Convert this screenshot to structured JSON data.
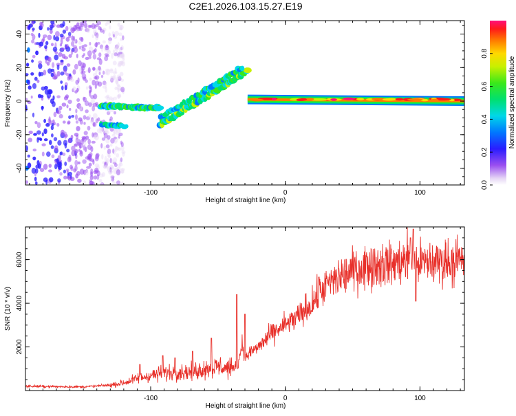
{
  "figure_title": "C2E1.2026.103.15.27.E19",
  "chart_data": [
    {
      "type": "heatmap",
      "title": "",
      "xlabel": "Height of straight line (km)",
      "ylabel": "Frequency (Hz)",
      "xlim": [
        -193,
        133
      ],
      "ylim": [
        -50,
        48
      ],
      "xticks": [
        -100,
        0,
        100
      ],
      "xtick_labels": [
        "-100",
        "0",
        "100"
      ],
      "yticks": [
        -40,
        -20,
        0,
        20,
        40
      ],
      "ytick_labels": [
        "-40",
        "-20",
        "0",
        "20",
        "40"
      ],
      "colorbar": {
        "label": "Normalized spectral amplitude",
        "range": [
          0,
          1
        ],
        "ticks": [
          0.0,
          0.2,
          0.4,
          0.6,
          0.8
        ],
        "tick_labels": [
          "0.0",
          "0.2",
          "0.4",
          "0.6",
          "0.8"
        ]
      },
      "features": [
        {
          "name": "noise-region",
          "x_range": [
            -193,
            -130
          ],
          "freq_range": [
            -50,
            48
          ],
          "amplitude": 0.15
        },
        {
          "name": "lower-branch",
          "x_start": -137,
          "x_end": -93,
          "freq_start": -3,
          "freq_end": -4,
          "amplitude": 0.45
        },
        {
          "name": "rising-trace",
          "x_start": -93,
          "x_end": -28,
          "freq_start": -14,
          "freq_end": 18,
          "amplitude": 0.5
        },
        {
          "name": "carrier-line",
          "x_start": -28,
          "x_end": 133,
          "freq_start": 1,
          "freq_end": 0,
          "amplitude": 0.95
        }
      ]
    },
    {
      "type": "line",
      "title": "",
      "xlabel": "Height of straight line (km)",
      "ylabel": "SNR (10 * v/v)",
      "xlim": [
        -193,
        133
      ],
      "ylim": [
        0,
        7500
      ],
      "xticks": [
        -100,
        0,
        100
      ],
      "xtick_labels": [
        "-100",
        "0",
        "100"
      ],
      "yticks": [
        2000,
        4000,
        6000
      ],
      "ytick_labels": [
        "2000",
        "4000",
        "6000"
      ],
      "series": [
        {
          "name": "SNR",
          "color": "#e8302a",
          "x": [
            -193,
            -170,
            -150,
            -130,
            -120,
            -110,
            -100,
            -90,
            -80,
            -70,
            -60,
            -50,
            -40,
            -35,
            -32,
            -30,
            -25,
            -20,
            -10,
            0,
            10,
            20,
            30,
            40,
            50,
            60,
            70,
            80,
            90,
            95,
            100,
            110,
            120,
            133
          ],
          "values": [
            200,
            180,
            170,
            250,
            350,
            550,
            700,
            800,
            850,
            850,
            1000,
            1100,
            1000,
            1200,
            2200,
            1500,
            1800,
            2000,
            2600,
            3000,
            3400,
            4000,
            4800,
            5200,
            5500,
            5700,
            5800,
            5800,
            6000,
            6200,
            5800,
            5900,
            5950,
            5950
          ],
          "spikes": [
            [
              -108,
              1200
            ],
            [
              -91,
              1600
            ],
            [
              -82,
              1500
            ],
            [
              -69,
              1800
            ],
            [
              -55,
              2400
            ],
            [
              -36,
              4400
            ],
            [
              -30,
              3500
            ],
            [
              25,
              5200
            ],
            [
              93,
              7000
            ],
            [
              95,
              7400
            ],
            [
              97,
              4100
            ]
          ]
        }
      ]
    }
  ]
}
